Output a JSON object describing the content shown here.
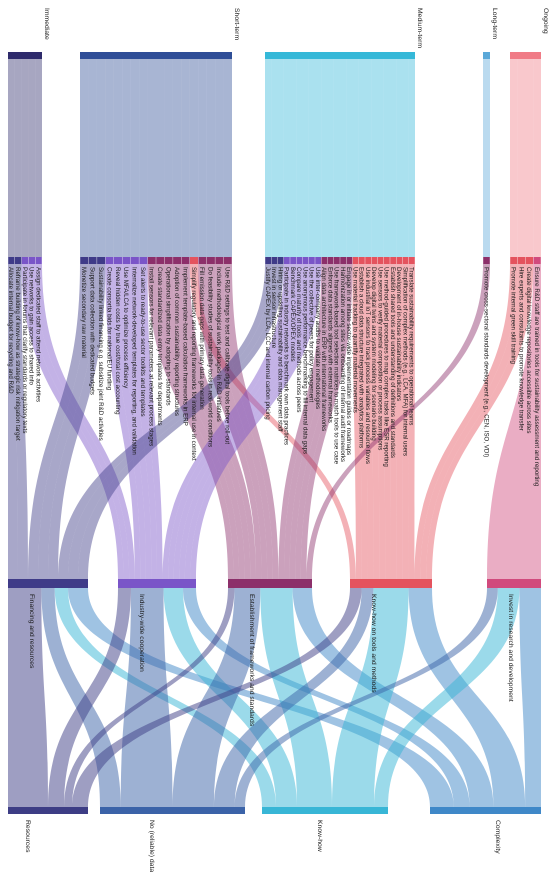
{
  "stages": [
    {
      "label": "Immediate",
      "color": "#2e2a6b"
    },
    {
      "label": "Short-term",
      "color": "#2f4e97"
    },
    {
      "label": "Medium-term",
      "color": "#35b8d8"
    },
    {
      "label": "Long-term",
      "color": "#5aa8d8"
    },
    {
      "label": "Ongoing",
      "color": "#f07b86"
    }
  ],
  "problem_categories": [
    {
      "label": "Resources",
      "color": "#3d3d85"
    },
    {
      "label": "No (reliable) data",
      "color": "#3b63a8"
    },
    {
      "label": "Know-how",
      "color": "#38b6d6"
    },
    {
      "label": "Complexity",
      "color": "#3f88c8"
    }
  ],
  "solution_categories": [
    {
      "label": "Financing and resources",
      "color": "#3f3b88"
    },
    {
      "label": "Industry-wide cooperation",
      "color": "#7a55c8"
    },
    {
      "label": "Establishment of frameworks and standards",
      "color": "#8c2f6a"
    },
    {
      "label": "Know-how on tools and methods",
      "color": "#e4535e"
    },
    {
      "label": "Invest in research and development",
      "color": "#d14a7d"
    }
  ],
  "measures": [
    {
      "stage": 0,
      "solution": 0,
      "color": "#3f3b88",
      "label": "Allocate internal budget for recycling and R&D"
    },
    {
      "stage": 0,
      "solution": 0,
      "color": "#3f3b88",
      "label": "Reframe building of know-how as strategic risk mitigation target"
    },
    {
      "stage": 0,
      "solution": 1,
      "color": "#7a55c8",
      "label": "Participate in forums that clarify standards or regulatory texts"
    },
    {
      "stage": 0,
      "solution": 1,
      "color": "#7a55c8",
      "label": "Use networks to gain access to shared info"
    },
    {
      "stage": 0,
      "solution": 1,
      "color": "#7a55c8",
      "label": "Assign dedicated staff to attend network activities"
    },
    {
      "stage": 1,
      "solution": 0,
      "color": "#3f3b88",
      "label": "Monetize secondary raw material"
    },
    {
      "stage": 1,
      "solution": 0,
      "color": "#3f3b88",
      "label": "Support data collection with dedicated budgets"
    },
    {
      "stage": 1,
      "solution": 0,
      "color": "#3f3b88",
      "label": "Sustainability linked financing e.g. subsidize joint R&D activities"
    },
    {
      "stage": 1,
      "solution": 1,
      "color": "#7a55c8",
      "label": "Create consortia bids for national/EU funding"
    },
    {
      "stage": 1,
      "solution": 1,
      "color": "#7a55c8",
      "label": "Reveal hidden costs by true cost/total cost accounting"
    },
    {
      "stage": 1,
      "solution": 1,
      "color": "#7a55c8",
      "label": "Use MFA/LCA to optimize process efficiency"
    },
    {
      "stage": 1,
      "solution": 1,
      "color": "#7a55c8",
      "label": "Internalize network-developed templates for reporting, and validation"
    },
    {
      "stage": 1,
      "solution": 1,
      "color": "#7a55c8",
      "label": "Set alerts to ready-to-use sector toolkits and templates"
    },
    {
      "stage": 1,
      "solution": 2,
      "color": "#8c2f6a",
      "label": "Install sensors for relevant parameters at relevant process stages"
    },
    {
      "stage": 1,
      "solution": 2,
      "color": "#8c2f6a",
      "label": "Create standardized data entry templates for departments"
    },
    {
      "stage": 1,
      "solution": 2,
      "color": "#8c2f6a",
      "label": "Operational simplification by adopting to standards"
    },
    {
      "stage": 1,
      "solution": 2,
      "color": "#8c2f6a",
      "label": "Adoption of common sustainability reporting structures"
    },
    {
      "stage": 1,
      "solution": 2,
      "color": "#8c2f6a",
      "label": "Implement template-based calculation frameworks in ERP"
    },
    {
      "stage": 1,
      "solution": 3,
      "color": "#e4535e",
      "label": "Simplify regulatory and reporting frameworks for internal use in context"
    },
    {
      "stage": 1,
      "solution": 2,
      "color": "#8c2f6a",
      "label": "Fill emission data gaps with primary data generation"
    },
    {
      "stage": 1,
      "solution": 2,
      "color": "#8c2f6a",
      "label": "Do feasibility studies of sustainability tools in real-world conditions"
    },
    {
      "stage": 1,
      "solution": 2,
      "color": "#8c2f6a",
      "label": "Include methodological work packages in R&D initiatives"
    },
    {
      "stage": 1,
      "solution": 2,
      "color": "#8c2f6a",
      "label": "Use R&D settings to test and calibrate digital tools before roll-out"
    },
    {
      "stage": 2,
      "solution": 0,
      "color": "#3f3b88",
      "label": "Justify CAPEX by LCA, LCC and internal carbon pricing"
    },
    {
      "stage": 2,
      "solution": 0,
      "color": "#3f3b88",
      "label": "Invest in sensor infrastructure"
    },
    {
      "stage": 2,
      "solution": 0,
      "color": "#3f3b88",
      "label": "Hiring or upskilling sustainability and data management staff"
    },
    {
      "stage": 2,
      "solution": 1,
      "color": "#7a55c8",
      "label": "Participate in industry networks to benchmark own data practices"
    },
    {
      "stage": 2,
      "solution": 1,
      "color": "#7a55c8",
      "label": "Benchmark CAPEX/OPEX models"
    },
    {
      "stage": 2,
      "solution": 1,
      "color": "#7a55c8",
      "label": "Compare maturity of tools and methods across peers"
    },
    {
      "stage": 2,
      "solution": 1,
      "color": "#7a55c8",
      "label": "Use anonymous performance benchmarking to fill internal data gaps"
    },
    {
      "stage": 2,
      "solution": 1,
      "color": "#7a55c8",
      "label": "Use the collective of peers for policy engagement"
    },
    {
      "stage": 2,
      "solution": 1,
      "color": "#7a55c8",
      "label": "Use inter-company audits to validate methodologies"
    },
    {
      "stage": 2,
      "solution": 2,
      "color": "#8c2f6a",
      "label": "Align data architecture in ERP with international frameworks"
    },
    {
      "stage": 2,
      "solution": 2,
      "color": "#8c2f6a",
      "label": "Enforce data standards aligned with external frameworks"
    },
    {
      "stage": 2,
      "solution": 2,
      "color": "#8c2f6a",
      "label": "Use framework-based tool selection matrices to match tools to use case"
    },
    {
      "stage": 2,
      "solution": 2,
      "color": "#8c2f6a",
      "label": "Harmonization among sites via onboarding of internal audit frameworks"
    },
    {
      "stage": 2,
      "solution": 2,
      "color": "#8c2f6a",
      "label": "Engage in or initiate sector-wide implementation guides or roadmaps"
    },
    {
      "stage": 2,
      "solution": 3,
      "color": "#e4535e",
      "label": "Use material tracking to quantify material movements"
    },
    {
      "stage": 2,
      "solution": 3,
      "color": "#e4535e",
      "label": "Establish a cloud data structure integrated with analytics platforms"
    },
    {
      "stage": 2,
      "solution": 3,
      "color": "#e4535e",
      "label": "Use industrial IoT sensors to track process variables and resource flows"
    },
    {
      "stage": 2,
      "solution": 3,
      "color": "#e4535e",
      "label": "Develop digital twins and system modeling for scenario building"
    },
    {
      "stage": 2,
      "solution": 3,
      "color": "#e4535e",
      "label": "Use sensors to verify material composition or process assumptions"
    },
    {
      "stage": 2,
      "solution": 3,
      "color": "#e4535e",
      "label": "Use method-guided procedures to map complex tasks like ESR reporting"
    },
    {
      "stage": 2,
      "solution": 3,
      "color": "#e4535e",
      "label": "Establish shared tools and understanding of definitions and standards"
    },
    {
      "stage": 2,
      "solution": 3,
      "color": "#e4535e",
      "label": "Development of in-house sustainability indicators"
    },
    {
      "stage": 2,
      "solution": 3,
      "color": "#e4535e",
      "label": "Simplification of complex methods (e.g., LCA, MFA) for internal users"
    },
    {
      "stage": 2,
      "solution": 3,
      "color": "#e4535e",
      "label": "Translate sustainability requirements to operational teams"
    },
    {
      "stage": 3,
      "solution": 2,
      "color": "#8c2f6a",
      "label": "Promote cross-sectoral standards development (e.g., CEN, ISO, VDI)"
    },
    {
      "stage": 4,
      "solution": 3,
      "color": "#e4535e",
      "label": "Promote internal green skill training"
    },
    {
      "stage": 4,
      "solution": 3,
      "color": "#e4535e",
      "label": "Hire experts and consultants to promote knowledge transfer"
    },
    {
      "stage": 4,
      "solution": 3,
      "color": "#e4535e",
      "label": "Create digital knowledge repositories accessible across sites"
    },
    {
      "stage": 4,
      "solution": 4,
      "color": "#d14a7d",
      "label": "Ensure R&D staff are trained in tools for sustainability assessment and reporting"
    }
  ]
}
